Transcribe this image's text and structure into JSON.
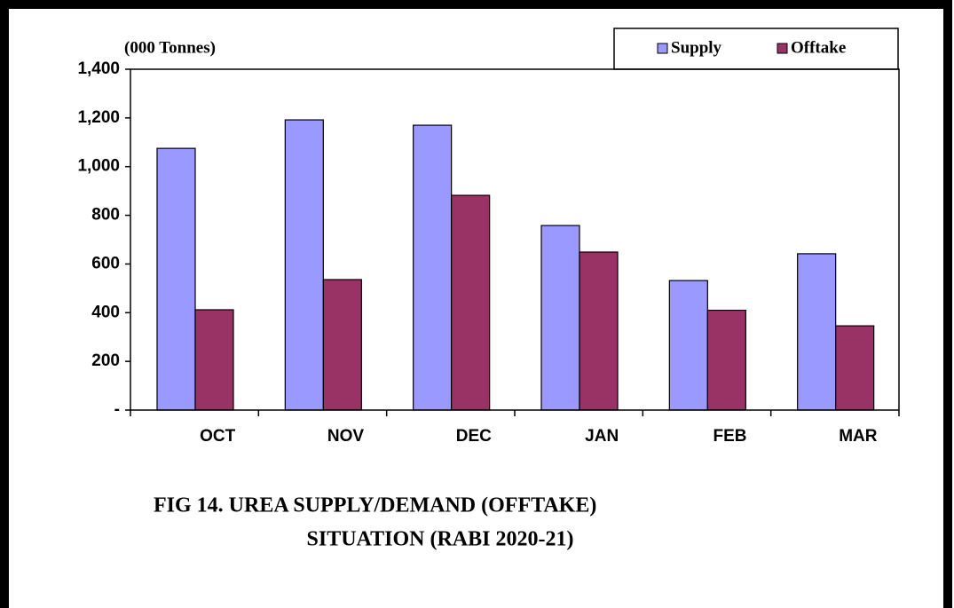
{
  "chart_data": {
    "type": "bar",
    "title": [
      "FIG 14. UREA SUPPLY/DEMAND  (OFFTAKE)",
      "SITUATION  (RABI 2020-21)"
    ],
    "y_label": "(000 Tonnes)",
    "categories": [
      "OCT",
      "NOV",
      "DEC",
      "JAN",
      "FEB",
      "MAR"
    ],
    "series": [
      {
        "name": "Supply",
        "color": "#9999ff",
        "values": [
          1075,
          1192,
          1170,
          758,
          532,
          642
        ]
      },
      {
        "name": "Offtake",
        "color": "#993366",
        "values": [
          412,
          536,
          882,
          649,
          410,
          346
        ]
      }
    ],
    "ylim": [
      0,
      1400
    ],
    "yticks": [
      {
        "value": 0,
        "label": "-"
      },
      200,
      400,
      600,
      800,
      {
        "value": 1000,
        "label": "1,000"
      },
      {
        "value": 1200,
        "label": "1,200"
      },
      {
        "value": 1400,
        "label": "1,400"
      }
    ],
    "legend": "top-right"
  }
}
